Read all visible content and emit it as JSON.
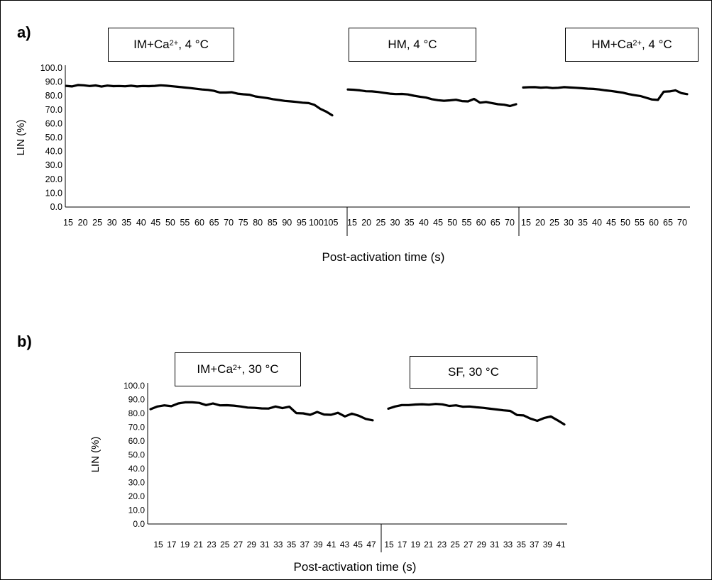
{
  "chart_data": [
    {
      "type": "line",
      "panel": "a)",
      "ylabel": "LIN (%)",
      "xlabel": "Post-activation time (s)",
      "ylim": [
        0,
        100
      ],
      "yticks": [
        "0.0",
        "10.0",
        "20.0",
        "30.0",
        "40.0",
        "50.0",
        "60.0",
        "70.0",
        "80.0",
        "90.0",
        "100.0"
      ],
      "segments": [
        {
          "box": {
            "main": "IM+Ca",
            "sup": "2+",
            "rest": ", 4 °C"
          },
          "tick_labels": [
            "15",
            "20",
            "25",
            "30",
            "35",
            "40",
            "45",
            "50",
            "55",
            "60",
            "65",
            "70",
            "75",
            "80",
            "85",
            "90",
            "95",
            "100",
            "105"
          ],
          "x": [
            15,
            17,
            19,
            21,
            23,
            25,
            27,
            29,
            31,
            33,
            35,
            37,
            39,
            41,
            43,
            45,
            47,
            49,
            51,
            53,
            55,
            57,
            59,
            61,
            63,
            65,
            67,
            69,
            71,
            73,
            75,
            77,
            79,
            81,
            83,
            85,
            87,
            89,
            91,
            93,
            95,
            97,
            99,
            101,
            103,
            105
          ],
          "values": [
            87.2,
            86.8,
            87.8,
            87.6,
            87.1,
            87.5,
            86.7,
            87.4,
            87.0,
            87.1,
            86.9,
            87.3,
            86.8,
            87.1,
            87.0,
            87.2,
            87.6,
            87.3,
            86.9,
            86.5,
            86.0,
            85.6,
            85.1,
            84.6,
            84.3,
            83.6,
            82.4,
            82.4,
            82.6,
            81.6,
            81.1,
            80.8,
            79.6,
            79.0,
            78.4,
            77.6,
            77.0,
            76.4,
            76.0,
            75.6,
            75.1,
            74.8,
            73.5,
            70.6,
            68.6,
            66.0
          ]
        },
        {
          "box": {
            "main": "HM, 4 °C",
            "sup": "",
            "rest": ""
          },
          "tick_labels": [
            "15",
            "20",
            "25",
            "30",
            "35",
            "40",
            "45",
            "50",
            "55",
            "60",
            "65",
            "70"
          ],
          "x": [
            15,
            17,
            19,
            21,
            23,
            25,
            27,
            29,
            31,
            33,
            35,
            37,
            39,
            41,
            43,
            45,
            47,
            49,
            51,
            53,
            55,
            57,
            59,
            61,
            63,
            65,
            67,
            69,
            71
          ],
          "values": [
            84.6,
            84.4,
            84.0,
            83.3,
            83.2,
            82.8,
            82.2,
            81.6,
            81.3,
            81.4,
            81.0,
            80.1,
            79.4,
            78.8,
            77.6,
            76.9,
            76.5,
            76.8,
            77.2,
            76.2,
            76.0,
            77.8,
            75.1,
            75.6,
            74.8,
            74.0,
            73.6,
            72.7,
            74.0
          ]
        },
        {
          "box": {
            "main": "HM+Ca",
            "sup": "2+",
            "rest": ", 4 °C"
          },
          "tick_labels": [
            "15",
            "20",
            "25",
            "30",
            "35",
            "40",
            "45",
            "50",
            "55",
            "60",
            "65",
            "70"
          ],
          "x": [
            15,
            17,
            19,
            21,
            23,
            25,
            27,
            29,
            31,
            33,
            35,
            37,
            39,
            41,
            43,
            45,
            47,
            49,
            51,
            53,
            55,
            57,
            59,
            61,
            63,
            65,
            67,
            69,
            71
          ],
          "values": [
            86.0,
            86.2,
            86.3,
            85.9,
            86.1,
            85.6,
            85.8,
            86.3,
            86.0,
            85.8,
            85.5,
            85.2,
            85.0,
            84.6,
            84.0,
            83.5,
            82.9,
            82.3,
            81.3,
            80.5,
            79.9,
            78.6,
            77.4,
            77.1,
            83.0,
            83.2,
            84.0,
            82.0,
            81.2
          ]
        }
      ]
    },
    {
      "type": "line",
      "panel": "b)",
      "ylabel": "LIN (%)",
      "xlabel": "Post-activation time (s)",
      "ylim": [
        0,
        100
      ],
      "yticks": [
        "0.0",
        "10.0",
        "20.0",
        "30.0",
        "40.0",
        "50.0",
        "60.0",
        "70.0",
        "80.0",
        "90.0",
        "100.0"
      ],
      "segments": [
        {
          "box": {
            "main": "IM+Ca",
            "sup": "2+",
            "rest": ", 30 °C"
          },
          "tick_labels": [
            "15",
            "17",
            "19",
            "21",
            "23",
            "25",
            "27",
            "29",
            "31",
            "33",
            "35",
            "37",
            "39",
            "41",
            "43",
            "45",
            "47"
          ],
          "x": [
            15,
            16,
            17,
            18,
            19,
            20,
            21,
            22,
            23,
            24,
            25,
            26,
            27,
            28,
            29,
            30,
            31,
            32,
            33,
            34,
            35,
            36,
            37,
            38,
            39,
            40,
            41,
            42,
            43,
            44,
            45,
            46,
            47
          ],
          "values": [
            83.0,
            85.0,
            85.8,
            85.2,
            87.2,
            88.0,
            88.0,
            87.6,
            86.0,
            87.2,
            85.8,
            85.9,
            85.6,
            85.0,
            84.2,
            84.0,
            83.6,
            83.5,
            85.0,
            83.8,
            84.8,
            80.2,
            80.0,
            79.0,
            81.0,
            79.2,
            79.0,
            80.4,
            77.8,
            79.8,
            78.3,
            76.0,
            75.0
          ]
        },
        {
          "box": {
            "main": "SF, 30 °C",
            "sup": "",
            "rest": ""
          },
          "tick_labels": [
            "15",
            "17",
            "19",
            "21",
            "23",
            "25",
            "27",
            "29",
            "31",
            "33",
            "35",
            "37",
            "39",
            "41"
          ],
          "x": [
            15,
            16,
            17,
            18,
            19,
            20,
            21,
            22,
            23,
            24,
            25,
            26,
            27,
            28,
            29,
            30,
            31,
            32,
            33,
            34,
            35,
            36,
            37,
            38,
            39,
            40,
            41
          ],
          "values": [
            83.4,
            85.0,
            86.0,
            86.0,
            86.4,
            86.6,
            86.3,
            86.8,
            86.5,
            85.4,
            85.8,
            84.8,
            85.0,
            84.4,
            84.0,
            83.4,
            82.8,
            82.2,
            81.8,
            78.8,
            78.5,
            76.2,
            74.6,
            76.6,
            77.8,
            75.0,
            72.0
          ]
        }
      ]
    }
  ]
}
